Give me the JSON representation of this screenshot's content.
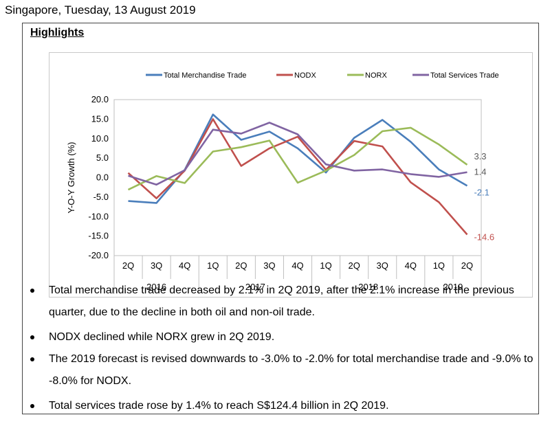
{
  "dateline": "Singapore, Tuesday, 13 August 2019",
  "highlights_title": "Highlights",
  "chart_data": {
    "type": "line",
    "ylabel": "Y-O-Y Growth (%)",
    "ylim": [
      -20,
      20
    ],
    "yticks": [
      "20.0",
      "15.0",
      "10.0",
      "5.0",
      "0.0",
      "-5.0",
      "-10.0",
      "-15.0",
      "-20.0"
    ],
    "categories": [
      "2Q",
      "3Q",
      "4Q",
      "1Q",
      "2Q",
      "3Q",
      "4Q",
      "1Q",
      "2Q",
      "3Q",
      "4Q",
      "1Q",
      "2Q"
    ],
    "year_groups": [
      {
        "label": "2016",
        "count": 3
      },
      {
        "label": "2017",
        "count": 4
      },
      {
        "label": "2018",
        "count": 4
      },
      {
        "label": "2019",
        "count": 2
      }
    ],
    "legend_position": "top",
    "grid": false,
    "series": [
      {
        "name": "Total Merchandise Trade",
        "color": "#4a7ebb",
        "values": [
          -6.0,
          -6.5,
          2.0,
          16.2,
          9.7,
          11.8,
          7.5,
          1.3,
          10.2,
          14.8,
          9.2,
          2.1,
          -2.1
        ],
        "end_label": "-2.1",
        "end_label_color": "#4a7ebb"
      },
      {
        "name": "NODX",
        "color": "#c0504d",
        "values": [
          1.2,
          -5.3,
          1.8,
          15.0,
          3.0,
          7.5,
          10.5,
          2.0,
          9.4,
          8.0,
          -1.2,
          -6.3,
          -14.6
        ],
        "end_label": "-14.6",
        "end_label_color": "#c0504d"
      },
      {
        "name": "NORX",
        "color": "#9bbb59",
        "values": [
          -3.1,
          0.4,
          -1.4,
          6.7,
          7.8,
          9.5,
          -1.3,
          1.8,
          5.8,
          11.9,
          12.8,
          8.5,
          3.3
        ],
        "end_label": "3.3",
        "end_label_color": "#595959"
      },
      {
        "name": "Total Services Trade",
        "color": "#8064a2",
        "values": [
          0.5,
          -1.8,
          1.9,
          12.3,
          11.3,
          14.1,
          11.1,
          3.4,
          1.8,
          2.1,
          0.9,
          0.2,
          1.4
        ],
        "end_label": "1.4",
        "end_label_color": "#595959"
      }
    ]
  },
  "bullets": [
    "Total merchandise trade decreased by 2.1% in 2Q 2019, after the 2.1% increase in the previous quarter, due to the decline in both oil and non-oil trade.",
    "NODX declined while NORX grew in 2Q 2019.",
    "The 2019 forecast is revised downwards to -3.0% to -2.0% for total merchandise trade and -9.0% to -8.0% for NODX.",
    "Total services trade rose by 1.4% to reach S$124.4 billion in 2Q 2019."
  ]
}
